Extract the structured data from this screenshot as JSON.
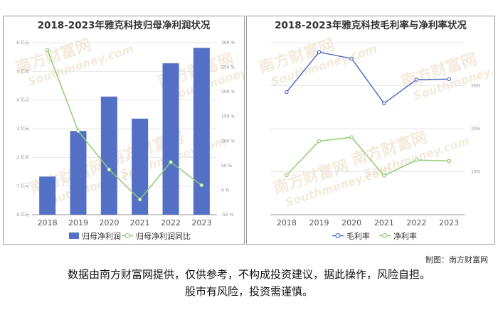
{
  "chart_data": [
    {
      "type": "bar",
      "title": "2018-2023年雅克科技归母净利润状况",
      "categories": [
        "2018",
        "2019",
        "2020",
        "2021",
        "2022",
        "2023"
      ],
      "series": [
        {
          "name": "归母净利润",
          "type": "bar",
          "axis": "left",
          "values": [
            1.33,
            2.92,
            4.12,
            3.35,
            5.28,
            5.82
          ]
        },
        {
          "name": "归母净利润同比",
          "type": "line",
          "axis": "right",
          "values": [
            285,
            120,
            42,
            -19,
            57,
            10
          ]
        }
      ],
      "y_left": {
        "ticks": [
          "0 亿元",
          "1 亿元",
          "2 亿元",
          "3 亿元",
          "4 亿元",
          "5 亿元",
          "6 亿元"
        ],
        "ylim": [
          0,
          6
        ]
      },
      "y_right": {
        "ticks": [
          "-50 %",
          "0 %",
          "50 %",
          "100 %",
          "150 %",
          "200 %",
          "250 %",
          "300 %"
        ],
        "ylim": [
          -50,
          300
        ]
      },
      "legend_position": "bottom"
    },
    {
      "type": "line",
      "title": "2018-2023年雅克科技毛利率与净利率状况",
      "categories": [
        "2018",
        "2019",
        "2020",
        "2021",
        "2022",
        "2023"
      ],
      "series": [
        {
          "name": "毛利率",
          "values": [
            28.5,
            37.8,
            36.3,
            25.9,
            31.4,
            31.5
          ]
        },
        {
          "name": "净利率",
          "values": [
            9.2,
            17.1,
            18.0,
            9.1,
            12.7,
            12.5
          ]
        }
      ],
      "y_right": {
        "ticks": [
          "10%",
          "20%",
          "30%"
        ],
        "ylim": [
          0,
          40
        ]
      },
      "legend_position": "bottom"
    }
  ],
  "colors": {
    "bar": "#5470c6",
    "line_green": "#91cc75",
    "line_blue": "#5470c6"
  },
  "watermark": {
    "brand": "南方财富网",
    "url": "Southmoney.com"
  },
  "credit": "制图：南方财富网",
  "disclaimer": {
    "line1": "数据由南方财富网提供，仅供参考，不构成投资建议，据此操作，风险自担。",
    "line2": "股市有风险，投资需谨慎。"
  }
}
